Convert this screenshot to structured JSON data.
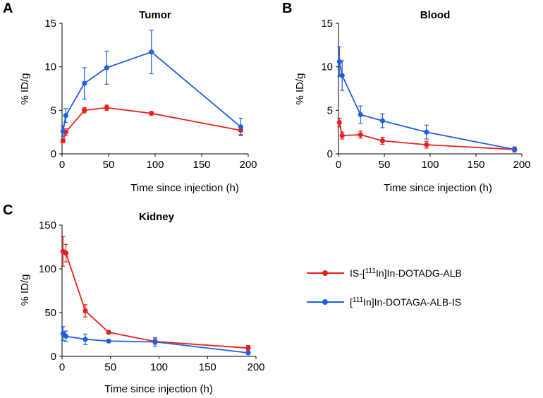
{
  "legend": {
    "series": [
      {
        "label_pre": "IS-[",
        "sup": "111",
        "label_post": "In]In-DOTADG-ALB",
        "color": "#e8211c"
      },
      {
        "label_pre": "[",
        "sup": "111",
        "label_post": "In]In-DOTAGA-ALB-IS",
        "color": "#1f5fe0"
      }
    ]
  },
  "chart_data": [
    {
      "type": "line",
      "panel": "A",
      "title": "Tumor",
      "xlabel": "Time since injection  (h)",
      "ylabel": "% ID/g",
      "xlim": [
        0,
        200
      ],
      "ylim": [
        0,
        15
      ],
      "xticks": [
        0,
        50,
        100,
        150,
        200
      ],
      "yticks": [
        0,
        5,
        10,
        15
      ],
      "series": [
        {
          "name": "IS-[111In]In-DOTADG-ALB",
          "color": "#e8211c",
          "x": [
            1,
            4,
            24,
            48,
            96,
            192
          ],
          "y": [
            1.5,
            2.5,
            5.0,
            5.3,
            4.65,
            2.7
          ],
          "err": [
            0.2,
            0.4,
            0.3,
            0.3,
            0.2,
            0.5
          ]
        },
        {
          "name": "[111In]In-DOTAGA-ALB-IS",
          "color": "#1f5fe0",
          "x": [
            1,
            4,
            24,
            48,
            96,
            192
          ],
          "y": [
            2.6,
            4.4,
            8.1,
            9.9,
            11.7,
            3.1
          ],
          "err": [
            0.6,
            0.8,
            1.8,
            1.9,
            2.5,
            1.0
          ]
        }
      ]
    },
    {
      "type": "line",
      "panel": "B",
      "title": "Blood",
      "xlabel": "Time since injection  (h)",
      "ylabel": "% ID/g",
      "xlim": [
        0,
        200
      ],
      "ylim": [
        0,
        15
      ],
      "xticks": [
        0,
        50,
        100,
        150,
        200
      ],
      "yticks": [
        0,
        5,
        10,
        15
      ],
      "series": [
        {
          "name": "IS-[111In]In-DOTADG-ALB",
          "color": "#e8211c",
          "x": [
            1,
            4,
            24,
            48,
            96,
            192
          ],
          "y": [
            3.6,
            2.1,
            2.2,
            1.5,
            1.05,
            0.5
          ],
          "err": [
            0.5,
            0.4,
            0.4,
            0.4,
            0.4,
            0.3
          ]
        },
        {
          "name": "[111In]In-DOTAGA-ALB-IS",
          "color": "#1f5fe0",
          "x": [
            1,
            4,
            24,
            48,
            96,
            192
          ],
          "y": [
            10.6,
            9.0,
            4.5,
            3.8,
            2.5,
            0.5
          ],
          "err": [
            1.7,
            1.7,
            1.0,
            0.8,
            0.8,
            0.2
          ]
        }
      ]
    },
    {
      "type": "line",
      "panel": "C",
      "title": "Kidney",
      "xlabel": "Time since injection  (h)",
      "ylabel": "% ID/g",
      "xlim": [
        0,
        200
      ],
      "ylim": [
        0,
        150
      ],
      "xticks": [
        0,
        50,
        100,
        150,
        200
      ],
      "yticks": [
        0,
        50,
        100,
        150
      ],
      "series": [
        {
          "name": "IS-[111In]In-DOTADG-ALB",
          "color": "#e8211c",
          "x": [
            1,
            4,
            24,
            48,
            96,
            192
          ],
          "y": [
            120,
            118,
            52,
            27.5,
            17,
            9.5
          ],
          "err": [
            17,
            10,
            7,
            1.5,
            3,
            3
          ]
        },
        {
          "name": "[111In]In-DOTAGA-ALB-IS",
          "color": "#1f5fe0",
          "x": [
            1,
            4,
            24,
            48,
            96,
            192
          ],
          "y": [
            26,
            23,
            19.5,
            17.5,
            16.5,
            4
          ],
          "err": [
            8,
            6,
            6,
            1.5,
            5,
            1
          ]
        }
      ]
    }
  ]
}
